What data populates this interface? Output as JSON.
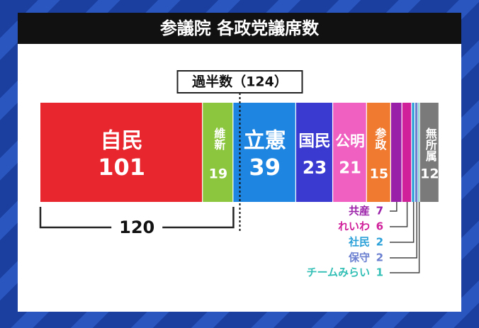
{
  "chart_data": {
    "type": "stacked-bar",
    "title": "参議院 各政党議席数",
    "categories": [
      "自民",
      "維新",
      "立憲",
      "国民",
      "公明",
      "参政",
      "共産",
      "れいわ",
      "社民",
      "保守",
      "チームみらい",
      "無所属"
    ],
    "values": [
      101,
      19,
      39,
      23,
      21,
      15,
      7,
      6,
      2,
      2,
      1,
      12
    ],
    "colors": [
      "#e8262e",
      "#8cc63e",
      "#1e86e0",
      "#3a3ad0",
      "#f060c0",
      "#f07a30",
      "#9a1fa8",
      "#d0209a",
      "#2aa0d8",
      "#6a7fd0",
      "#33bfb5",
      "#7a7a7a"
    ],
    "xlim": [
      0,
      248
    ],
    "reference_line": {
      "value": 124,
      "label": "過半数（124）"
    },
    "bracket_value": 120
  }
}
